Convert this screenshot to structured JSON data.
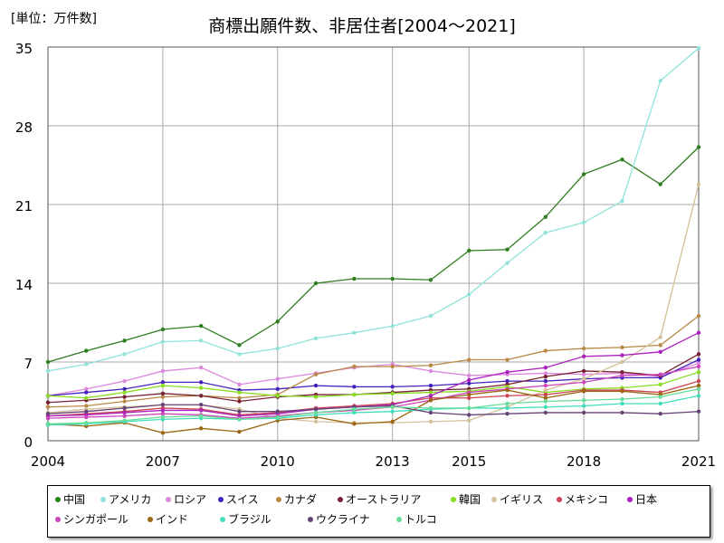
{
  "chart_data": {
    "type": "line",
    "title": "商標出願件数、非居住者[2004～2021]",
    "unit_label": "[単位：万件数]",
    "xlabel": "",
    "ylabel": "",
    "x": [
      2004,
      2005,
      2006,
      2007,
      2008,
      2009,
      2010,
      2011,
      2012,
      2013,
      2014,
      2015,
      2016,
      2017,
      2018,
      2019,
      2020,
      2021
    ],
    "xlim": [
      2004,
      2021
    ],
    "ylim": [
      0,
      35
    ],
    "x_ticks": [
      "2004",
      "2007",
      "2010",
      "2013",
      "2015",
      "2018",
      "2021"
    ],
    "x_tick_values": [
      2004,
      2007,
      2010,
      2013,
      2015,
      2018,
      2021
    ],
    "y_ticks": [
      "0",
      "7",
      "14",
      "21",
      "28",
      "35"
    ],
    "y_tick_values": [
      0,
      7,
      14,
      21,
      28,
      35
    ],
    "grid": true,
    "legend_position": "bottom",
    "series": [
      {
        "name": "中国",
        "color": "#2e7d1e",
        "values": [
          7.0,
          8.0,
          8.9,
          9.9,
          10.2,
          8.5,
          10.6,
          14.0,
          14.4,
          14.4,
          14.3,
          16.9,
          17.0,
          19.9,
          23.7,
          25.0,
          22.8,
          26.1
        ]
      },
      {
        "name": "アメリカ",
        "color": "#8fe3d8",
        "values": [
          6.2,
          6.8,
          7.7,
          8.8,
          8.9,
          7.7,
          8.2,
          9.1,
          9.6,
          10.2,
          11.1,
          13.0,
          15.8,
          18.5,
          19.4,
          21.3,
          32.0,
          34.9
        ]
      },
      {
        "name": "ロシア",
        "color": "#dd88dd",
        "values": [
          4.0,
          4.6,
          5.3,
          6.2,
          6.5,
          5.0,
          5.5,
          6.0,
          6.5,
          6.8,
          6.2,
          5.8,
          5.9,
          6.0,
          5.9,
          6.0,
          5.7,
          6.9
        ]
      },
      {
        "name": "スイス",
        "color": "#4422bb",
        "values": [
          4.0,
          4.3,
          4.6,
          5.2,
          5.2,
          4.5,
          4.6,
          4.9,
          4.8,
          4.8,
          4.9,
          5.1,
          5.3,
          5.3,
          5.5,
          5.6,
          5.6,
          7.2
        ]
      },
      {
        "name": "カナダ",
        "color": "#b88844",
        "values": [
          3.0,
          3.1,
          3.5,
          3.9,
          4.0,
          3.8,
          4.1,
          5.9,
          6.6,
          6.6,
          6.7,
          7.2,
          7.2,
          8.0,
          8.2,
          8.3,
          8.5,
          11.1
        ]
      },
      {
        "name": "オーストラリア",
        "color": "#772233",
        "values": [
          3.4,
          3.6,
          3.9,
          4.2,
          4.0,
          3.5,
          3.9,
          4.1,
          4.1,
          4.3,
          4.5,
          4.6,
          5.0,
          5.7,
          6.2,
          6.1,
          5.8,
          7.7
        ]
      },
      {
        "name": "韓国",
        "color": "#88dd22",
        "values": [
          4.0,
          3.8,
          4.3,
          4.9,
          4.7,
          4.3,
          4.0,
          3.9,
          4.1,
          4.2,
          4.3,
          4.4,
          4.8,
          4.3,
          4.6,
          4.7,
          5.0,
          6.1
        ]
      },
      {
        "name": "イギリス",
        "color": "#d4c09a",
        "values": [
          2.5,
          2.8,
          3.0,
          3.2,
          3.2,
          2.8,
          2.0,
          1.7,
          1.6,
          1.6,
          1.7,
          1.8,
          3.0,
          4.5,
          5.5,
          7.0,
          9.2,
          22.8
        ]
      },
      {
        "name": "メキシコ",
        "color": "#cc4455",
        "values": [
          2.2,
          2.4,
          2.6,
          2.9,
          2.8,
          2.3,
          2.5,
          2.9,
          3.1,
          3.3,
          3.8,
          3.8,
          4.0,
          4.1,
          4.5,
          4.5,
          4.3,
          5.3
        ]
      },
      {
        "name": "日本",
        "color": "#aa22bb",
        "values": [
          2.2,
          2.3,
          2.5,
          2.7,
          2.7,
          2.2,
          2.4,
          2.8,
          3.0,
          3.2,
          4.0,
          5.4,
          6.1,
          6.5,
          7.5,
          7.6,
          7.9,
          9.6
        ]
      },
      {
        "name": "シンガポール",
        "color": "#cc44bb",
        "values": [
          2.0,
          2.1,
          2.2,
          2.4,
          2.3,
          2.0,
          2.2,
          2.5,
          2.7,
          3.0,
          3.6,
          4.3,
          4.6,
          4.9,
          5.2,
          5.8,
          5.9,
          6.6
        ]
      },
      {
        "name": "インド",
        "color": "#9a6611",
        "values": [
          1.5,
          1.3,
          1.6,
          0.7,
          1.1,
          0.8,
          1.8,
          2.1,
          1.5,
          1.7,
          3.6,
          4.1,
          4.5,
          3.8,
          4.4,
          4.4,
          4.1,
          4.9
        ]
      },
      {
        "name": "ブラジル",
        "color": "#44ddbb",
        "values": [
          1.4,
          1.5,
          1.7,
          1.9,
          2.0,
          1.9,
          2.0,
          2.3,
          2.5,
          2.6,
          2.8,
          2.9,
          2.9,
          3.0,
          3.1,
          3.3,
          3.3,
          4.0
        ]
      },
      {
        "name": "ウクライナ",
        "color": "#664477",
        "values": [
          2.4,
          2.6,
          2.9,
          3.2,
          3.2,
          2.6,
          2.6,
          2.8,
          3.0,
          3.1,
          2.5,
          2.3,
          2.4,
          2.5,
          2.5,
          2.5,
          2.4,
          2.6
        ]
      },
      {
        "name": "トルコ",
        "color": "#66dd99",
        "values": [
          1.5,
          1.6,
          1.8,
          2.1,
          2.2,
          1.9,
          2.1,
          2.5,
          2.8,
          3.0,
          2.9,
          2.9,
          3.3,
          3.5,
          3.6,
          3.7,
          3.9,
          4.6
        ]
      }
    ]
  }
}
